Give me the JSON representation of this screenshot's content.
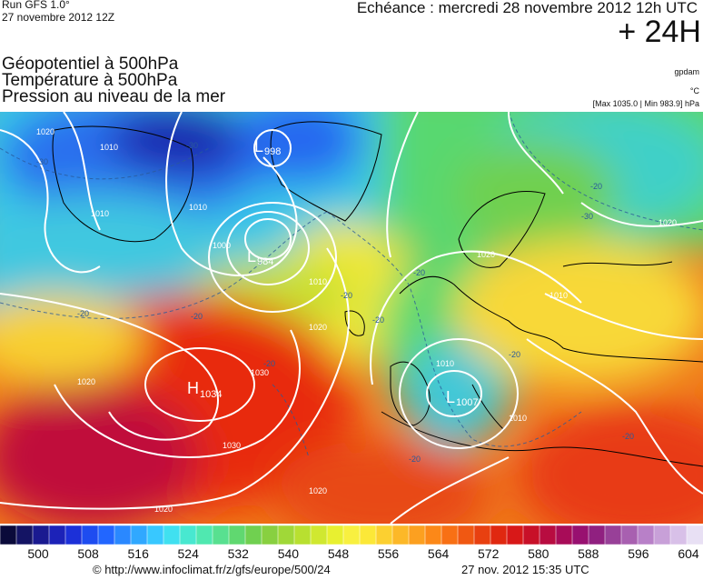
{
  "header": {
    "run": "Run GFS 1.0°",
    "run_date": "27 novembre 2012 12Z",
    "validity": "Echéance : mercredi 28 novembre 2012 12h UTC",
    "lead_time": "+ 24H"
  },
  "titles": {
    "line1": "Géopotentiel à 500hPa",
    "line2": "Température à 500hPa",
    "line3": "Pression au niveau de la mer"
  },
  "units": {
    "geopotential": "gpdam",
    "temperature": "°C",
    "pressure_range": "[Max 1035.0 | Min 983.9] hPa"
  },
  "map": {
    "centers": [
      {
        "type": "H",
        "value": "1034"
      },
      {
        "type": "L",
        "value": "998"
      },
      {
        "type": "L",
        "value": "984"
      },
      {
        "type": "L",
        "value": "1007"
      }
    ],
    "isobar_labels": [
      "1010",
      "1020",
      "1010",
      "1010",
      "1000",
      "1010",
      "1020",
      "1020",
      "1030",
      "1030",
      "1020",
      "1020",
      "1020",
      "1010",
      "1010",
      "1020",
      "1010"
    ],
    "isotherm_labels": [
      "-30",
      "-30",
      "-30",
      "-20",
      "-20",
      "-20",
      "-20",
      "-20",
      "-20",
      "-20",
      "-20",
      "-20",
      "-20"
    ]
  },
  "scale": {
    "tick_labels": [
      "500",
      "508",
      "516",
      "524",
      "532",
      "540",
      "548",
      "556",
      "564",
      "572",
      "580",
      "588",
      "596",
      "604"
    ],
    "colors": [
      "#0a0a3a",
      "#141464",
      "#1a1a90",
      "#1c22b8",
      "#1c30d8",
      "#1e4cf0",
      "#2266ff",
      "#2a88ff",
      "#30a8ff",
      "#38c8ff",
      "#40e0f0",
      "#48e8d0",
      "#50e8b0",
      "#58e090",
      "#60d870",
      "#70d050",
      "#88d040",
      "#a0d838",
      "#b8e030",
      "#d0e830",
      "#e8f030",
      "#f8f040",
      "#fce838",
      "#fcd030",
      "#fcb828",
      "#fca020",
      "#fc8818",
      "#f87014",
      "#f05812",
      "#e84010",
      "#e02810",
      "#d81818",
      "#c81028",
      "#b80c40",
      "#a80c58",
      "#981070",
      "#902080",
      "#984098",
      "#a860b0",
      "#b880c8",
      "#c8a0d8",
      "#d8c0e8",
      "#e8e0f4"
    ]
  },
  "footer": {
    "source": "© http://www.infoclimat.fr/z/gfs/europe/500/24",
    "generated": "27 nov. 2012 15:35 UTC"
  },
  "palette": {
    "isobar": "#ffffff",
    "isotherm": "#2a5a9a",
    "coast": "#000000"
  }
}
